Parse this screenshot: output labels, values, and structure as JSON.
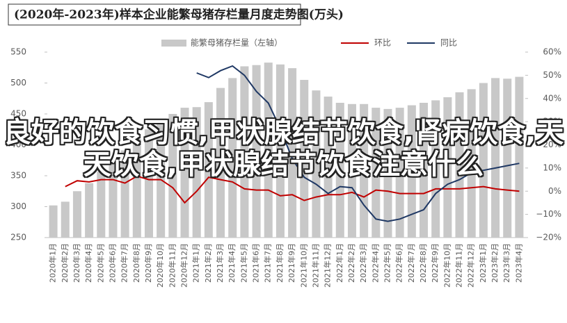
{
  "chart_data": {
    "type": "bar-line",
    "title": "(2020年-2023年)样本企业能繁母猪存栏量月度走势图(万头)",
    "overlay_text": "良好的饮食习惯,甲状腺结节饮食,肾病饮食,天天饮食,甲状腺结节饮食注意什么",
    "categories": [
      "2020年1月",
      "2020年2月",
      "2020年3月",
      "2020年4月",
      "2020年5月",
      "2020年6月",
      "2020年7月",
      "2020年8月",
      "2020年9月",
      "2020年10月",
      "2020年11月",
      "2020年12月",
      "2021年1月",
      "2021年2月",
      "2021年3月",
      "2021年4月",
      "2021年5月",
      "2021年6月",
      "2021年7月",
      "2021年8月",
      "2021年9月",
      "2021年10月",
      "2021年11月",
      "2021年12月",
      "2022年1月",
      "2022年2月",
      "2022年3月",
      "2022年4月",
      "2022年5月",
      "2022年6月",
      "2022年7月",
      "2022年8月",
      "2022年9月",
      "2022年10月",
      "2022年11月",
      "2022年12月",
      "2023年1月",
      "2023年2月",
      "2023年3月",
      "2023年4月"
    ],
    "series": [
      {
        "name": "能繁母猪存栏量（左轴）",
        "type": "bar",
        "color": "#c8c8c8",
        "axis": "y",
        "values": [
          302,
          308,
          325,
          338,
          357,
          374,
          391,
          410,
          425,
          440,
          450,
          460,
          461,
          469,
          492,
          508,
          527,
          529,
          533,
          530,
          524,
          505,
          488,
          478,
          468,
          466,
          466,
          460,
          458,
          460,
          464,
          468,
          472,
          477,
          485,
          490,
          500,
          508,
          507,
          510
        ]
      },
      {
        "name": "环比",
        "type": "line",
        "color": "#c00000",
        "axis": "y2",
        "values": [
          null,
          2,
          4.5,
          4,
          5,
          5,
          3.5,
          6.5,
          5,
          5,
          1.5,
          -5,
          0,
          6,
          5,
          4,
          1,
          0.5,
          0.5,
          -2,
          -1.5,
          -4,
          -2.5,
          -1.5,
          -1.5,
          -0.5,
          -2.5,
          0.5,
          0,
          -1,
          -1,
          -1,
          1,
          1,
          1,
          1.5,
          2,
          1,
          0.5,
          0
        ]
      },
      {
        "name": "同比",
        "type": "line",
        "color": "#1f3864",
        "axis": "y2",
        "values": [
          null,
          null,
          null,
          null,
          null,
          null,
          null,
          null,
          null,
          null,
          null,
          null,
          51,
          49,
          52,
          54,
          50,
          43,
          38,
          27,
          14,
          6,
          3,
          -1,
          2,
          1.5,
          -6,
          -12,
          -13,
          -12,
          -10,
          -8,
          -1,
          3,
          5,
          8,
          9,
          10,
          11,
          12
        ]
      }
    ],
    "ylim": [
      250,
      550
    ],
    "yticks": [
      250,
      300,
      350,
      400,
      450,
      500,
      550
    ],
    "y2lim": [
      -20,
      60
    ],
    "y2ticks": [
      {
        "value": -20,
        "label": "−20%"
      },
      {
        "value": -10,
        "label": "−10%"
      },
      {
        "value": 0,
        "label": "0%"
      },
      {
        "value": 10,
        "label": "10%"
      },
      {
        "value": 20,
        "label": "20%"
      },
      {
        "value": 30,
        "label": "30%"
      },
      {
        "value": 40,
        "label": "40%"
      },
      {
        "value": 50,
        "label": "50%"
      },
      {
        "value": 60,
        "label": "60%"
      }
    ]
  }
}
